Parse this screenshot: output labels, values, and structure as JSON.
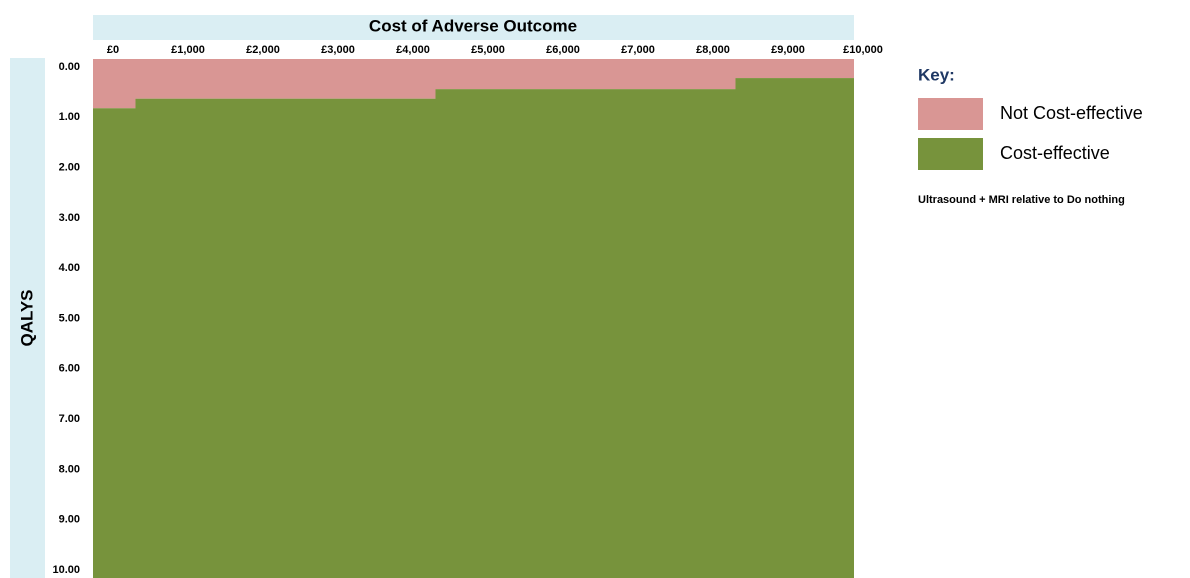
{
  "chart_data": {
    "type": "step-area",
    "title": "Cost of Adverse Outcome",
    "ylabel": "QALYS",
    "x": [
      0,
      300,
      4300,
      8300
    ],
    "values": [
      0.82,
      0.63,
      0.44,
      0.22
    ],
    "series": [
      {
        "name": "Not Cost-effective",
        "color": "#d99694"
      },
      {
        "name": "Cost-effective",
        "color": "#77933c"
      }
    ],
    "xlim": [
      0,
      10000
    ],
    "xticks": [
      {
        "value": 0,
        "label": "£0"
      },
      {
        "value": 1000,
        "label": "£1,000"
      },
      {
        "value": 2000,
        "label": "£2,000"
      },
      {
        "value": 3000,
        "label": "£3,000"
      },
      {
        "value": 4000,
        "label": "£4,000"
      },
      {
        "value": 5000,
        "label": "£5,000"
      },
      {
        "value": 6000,
        "label": "£6,000"
      },
      {
        "value": 7000,
        "label": "£7,000"
      },
      {
        "value": 8000,
        "label": "£8,000"
      },
      {
        "value": 9000,
        "label": "£9,000"
      },
      {
        "value": 10000,
        "label": "£10,000"
      }
    ],
    "ylim": [
      0,
      10
    ],
    "yticks": [
      {
        "value": 0,
        "label": "0.00"
      },
      {
        "value": 1,
        "label": "1.00"
      },
      {
        "value": 2,
        "label": "2.00"
      },
      {
        "value": 3,
        "label": "3.00"
      },
      {
        "value": 4,
        "label": "4.00"
      },
      {
        "value": 5,
        "label": "5.00"
      },
      {
        "value": 6,
        "label": "6.00"
      },
      {
        "value": 7,
        "label": "7.00"
      },
      {
        "value": 8,
        "label": "8.00"
      },
      {
        "value": 9,
        "label": "9.00"
      },
      {
        "value": 10,
        "label": "10.00"
      }
    ],
    "legend_title": "Key:",
    "annotation": "Ultrasound + MRI relative to Do nothing"
  }
}
